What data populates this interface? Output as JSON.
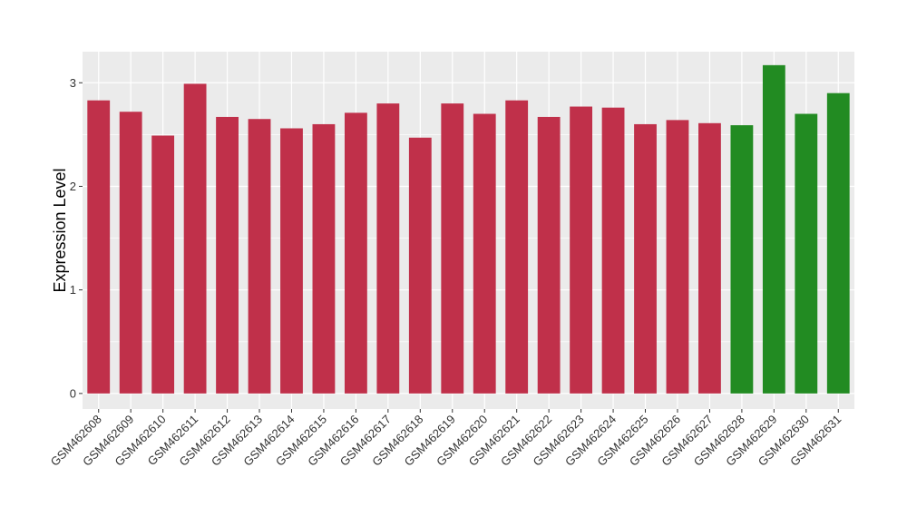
{
  "chart_data": {
    "type": "bar",
    "title": "",
    "xlabel": "",
    "ylabel": "Expression Level",
    "ylim": [
      -0.15,
      3.3
    ],
    "yticks": [
      0,
      1,
      2,
      3
    ],
    "grid": true,
    "legend": "none",
    "categories": [
      "GSM462608",
      "GSM462609",
      "GSM462610",
      "GSM462611",
      "GSM462612",
      "GSM462613",
      "GSM462614",
      "GSM462615",
      "GSM462616",
      "GSM462617",
      "GSM462618",
      "GSM462619",
      "GSM462620",
      "GSM462621",
      "GSM462622",
      "GSM462623",
      "GSM462624",
      "GSM462625",
      "GSM462626",
      "GSM462627",
      "GSM462628",
      "GSM462629",
      "GSM462630",
      "GSM462631"
    ],
    "values": [
      2.83,
      2.72,
      2.49,
      2.99,
      2.67,
      2.65,
      2.56,
      2.6,
      2.71,
      2.8,
      2.47,
      2.8,
      2.7,
      2.83,
      2.67,
      2.77,
      2.76,
      2.6,
      2.64,
      2.61,
      2.59,
      3.17,
      2.7,
      2.9
    ],
    "bar_colors": [
      "#C0304A",
      "#C0304A",
      "#C0304A",
      "#C0304A",
      "#C0304A",
      "#C0304A",
      "#C0304A",
      "#C0304A",
      "#C0304A",
      "#C0304A",
      "#C0304A",
      "#C0304A",
      "#C0304A",
      "#C0304A",
      "#C0304A",
      "#C0304A",
      "#C0304A",
      "#C0304A",
      "#C0304A",
      "#C0304A",
      "#228B22",
      "#228B22",
      "#228B22",
      "#228B22"
    ],
    "panel_background": "#EBEBEB",
    "grid_color": "#FFFFFF"
  }
}
